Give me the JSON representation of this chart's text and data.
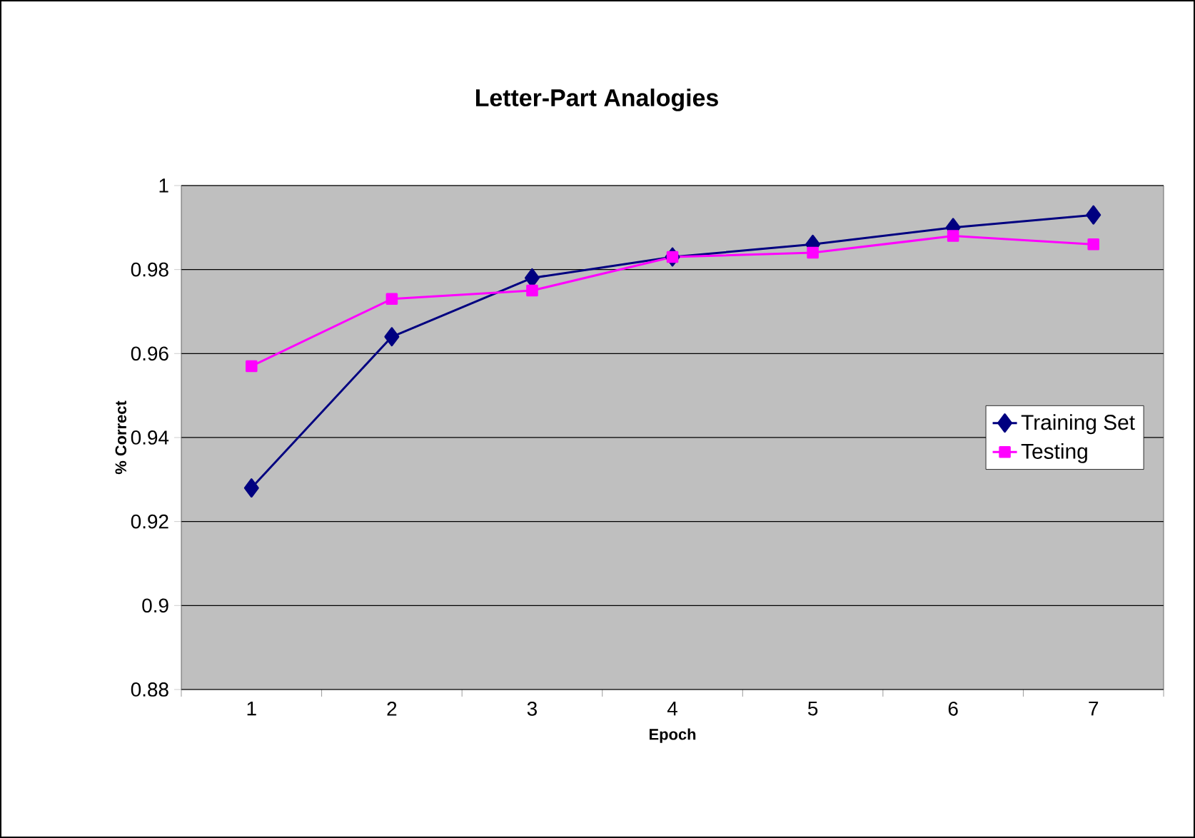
{
  "chart_data": {
    "type": "line",
    "title": "Letter-Part Analogies",
    "xlabel": "Epoch",
    "ylabel": "% Correct",
    "categories": [
      "1",
      "2",
      "3",
      "4",
      "5",
      "6",
      "7"
    ],
    "series": [
      {
        "name": "Training Set",
        "color": "#000080",
        "marker": "diamond",
        "values": [
          0.928,
          0.964,
          0.978,
          0.983,
          0.986,
          0.99,
          0.993
        ]
      },
      {
        "name": "Testing",
        "color": "#ff00ff",
        "marker": "square",
        "values": [
          0.957,
          0.973,
          0.975,
          0.983,
          0.984,
          0.988,
          0.986
        ]
      }
    ],
    "ylim": [
      0.88,
      1
    ],
    "yticks": [
      0.88,
      0.9,
      0.92,
      0.94,
      0.96,
      0.98,
      1
    ],
    "grid": "y",
    "legend": "right"
  }
}
